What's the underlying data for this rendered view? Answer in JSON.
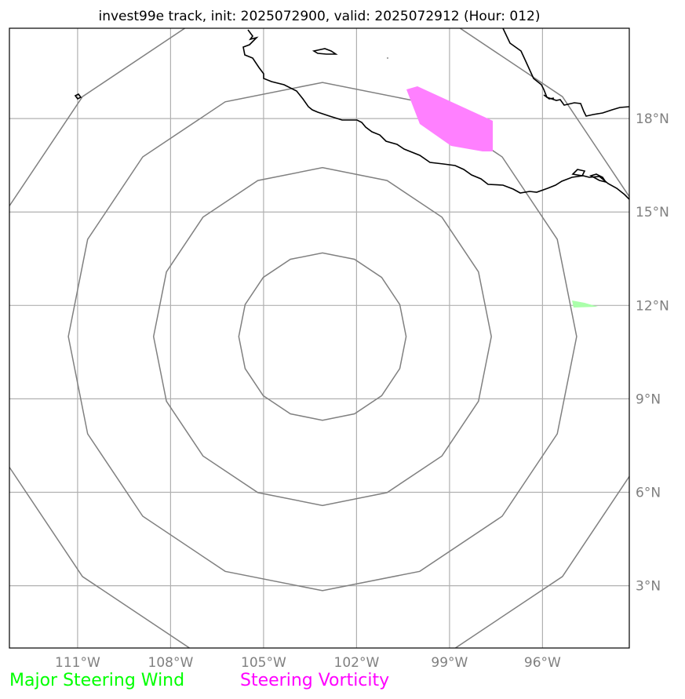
{
  "title": "invest99e track, init: 2025072900, valid: 2025072912 (Hour: 012)",
  "legend": {
    "major_steering_wind": {
      "label": "Major Steering Wind",
      "color": "#00ff00"
    },
    "steering_vorticity": {
      "label": "Steering Vorticity",
      "color": "#ff00ff"
    }
  },
  "map": {
    "lon_range": [
      -113.2,
      -93.2
    ],
    "lat_range": [
      1.0,
      20.9
    ],
    "lon_ticks": [
      {
        "value": -111,
        "label": "111°W"
      },
      {
        "value": -108,
        "label": "108°W"
      },
      {
        "value": -105,
        "label": "105°W"
      },
      {
        "value": -102,
        "label": "102°W"
      },
      {
        "value": -99,
        "label": "99°W"
      },
      {
        "value": -96,
        "label": "96°W"
      }
    ],
    "lat_ticks": [
      {
        "value": 3,
        "label": "3°N"
      },
      {
        "value": 6,
        "label": "6°N"
      },
      {
        "value": 9,
        "label": "9°N"
      },
      {
        "value": 12,
        "label": "12°N"
      },
      {
        "value": 15,
        "label": "15°N"
      },
      {
        "value": 18,
        "label": "18°N"
      }
    ],
    "grid": true,
    "range_rings": {
      "center": {
        "lon": -103.1,
        "lat": 11.0
      },
      "radii_deg": [
        2.7,
        5.45,
        8.2,
        10.95
      ],
      "color": "#808080"
    },
    "coastline_color": "#000000",
    "vorticity_color": "#ff80ff",
    "wind_color": "#aaffaa"
  }
}
